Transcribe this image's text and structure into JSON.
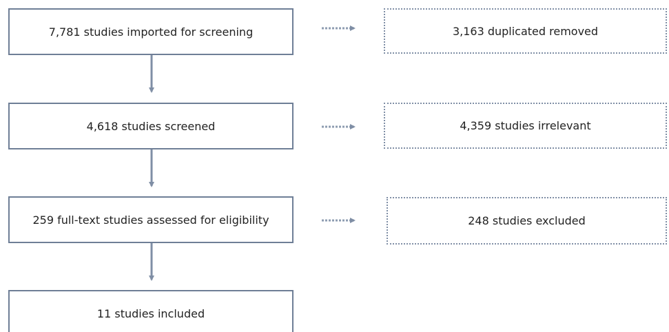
{
  "steps": [
    {
      "label": "7,781 studies imported for screening"
    },
    {
      "label": "4,618 studies screened"
    },
    {
      "label": "259 full-text studies assessed for eligibility"
    },
    {
      "label": "11 studies included"
    }
  ],
  "removed": [
    {
      "label": "3,163 duplicated removed"
    },
    {
      "label": "4,359 studies irrelevant"
    },
    {
      "label": "248 studies excluded"
    }
  ]
}
